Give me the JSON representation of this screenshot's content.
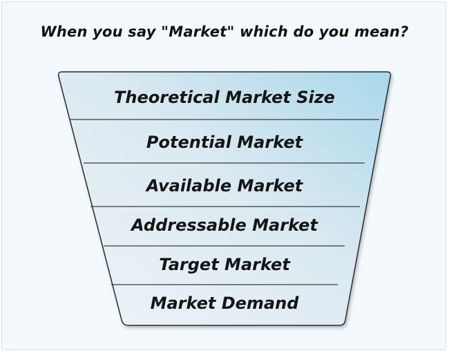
{
  "title": "When you say \"Market\" which do you mean?",
  "levels": [
    "Theoretical Market Size",
    "Potential Market",
    "Available Market",
    "Addressable Market",
    "Target Market",
    "Market Demand"
  ],
  "colors": {
    "funnel_light": "#e8f1f6",
    "funnel_blue": "#a9d8ea",
    "outline": "#2b2b2b",
    "divider": "#3a3a3a"
  }
}
